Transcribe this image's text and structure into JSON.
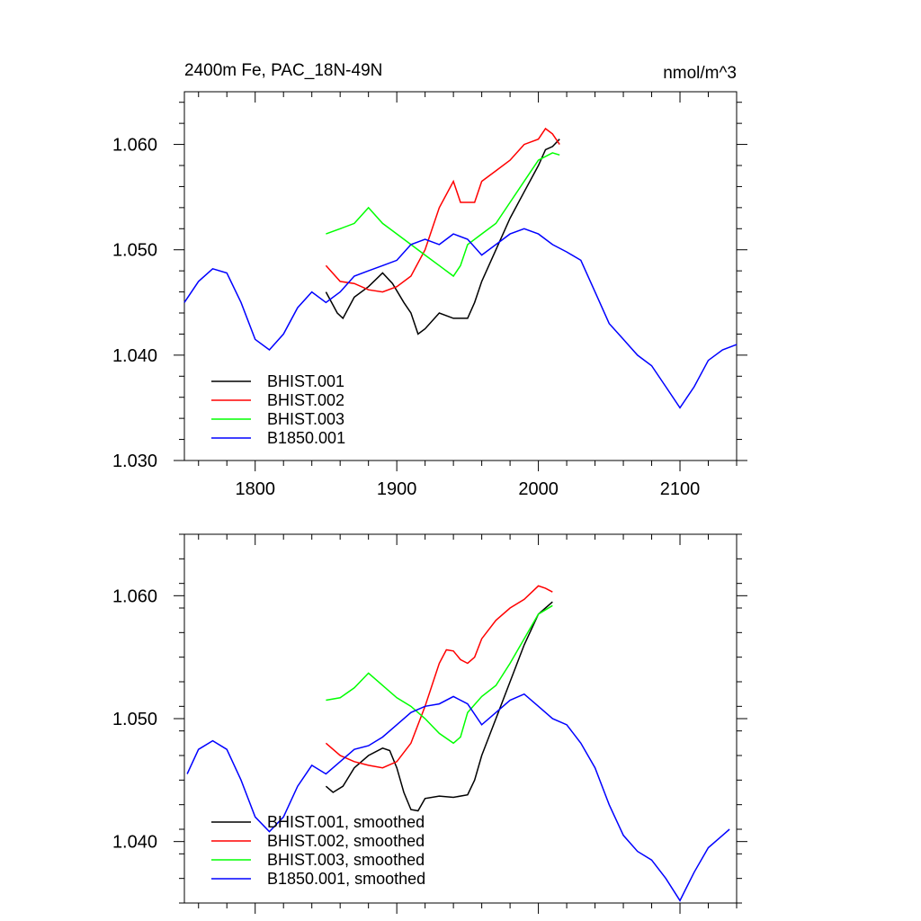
{
  "chart_data": [
    {
      "type": "line",
      "title": "2400m Fe, PAC_18N-49N",
      "units": "nmol/m^3",
      "xlim": [
        1750,
        2140
      ],
      "ylim": [
        1.03,
        1.065
      ],
      "xticks": [
        1800,
        1900,
        2000,
        2100
      ],
      "xtick_labels": [
        "1800",
        "1900",
        "2000",
        "2100"
      ],
      "yticks": [
        1.03,
        1.04,
        1.05,
        1.06
      ],
      "ytick_labels": [
        "1.030",
        "1.040",
        "1.050",
        "1.060"
      ],
      "grid": false,
      "legend_position": "bottom-left",
      "series": [
        {
          "name": "BHIST.001",
          "color": "#000000",
          "x": [
            1850,
            1858,
            1862,
            1870,
            1880,
            1890,
            1897,
            1905,
            1910,
            1915,
            1920,
            1930,
            1940,
            1950,
            1955,
            1960,
            1970,
            1980,
            1990,
            2000,
            2005,
            2010,
            2015
          ],
          "y": [
            1.046,
            1.044,
            1.0435,
            1.0455,
            1.0465,
            1.0478,
            1.0468,
            1.045,
            1.044,
            1.042,
            1.0425,
            1.044,
            1.0435,
            1.0435,
            1.045,
            1.047,
            1.05,
            1.053,
            1.0555,
            1.058,
            1.0595,
            1.0598,
            1.0605
          ]
        },
        {
          "name": "BHIST.002",
          "color": "#ff0000",
          "x": [
            1850,
            1860,
            1870,
            1880,
            1890,
            1900,
            1910,
            1920,
            1930,
            1940,
            1945,
            1955,
            1960,
            1970,
            1980,
            1990,
            2000,
            2005,
            2010,
            2015
          ],
          "y": [
            1.0485,
            1.047,
            1.0468,
            1.0462,
            1.046,
            1.0465,
            1.0475,
            1.05,
            1.054,
            1.0565,
            1.0545,
            1.0545,
            1.0565,
            1.0575,
            1.0585,
            1.06,
            1.0605,
            1.0615,
            1.061,
            1.06
          ]
        },
        {
          "name": "BHIST.003",
          "color": "#00ff00",
          "x": [
            1850,
            1860,
            1870,
            1880,
            1890,
            1900,
            1910,
            1920,
            1930,
            1940,
            1945,
            1950,
            1960,
            1970,
            1980,
            1990,
            2000,
            2010,
            2015
          ],
          "y": [
            1.0515,
            1.052,
            1.0525,
            1.054,
            1.0525,
            1.0515,
            1.0505,
            1.0495,
            1.0485,
            1.0475,
            1.0485,
            1.0505,
            1.0515,
            1.0525,
            1.0545,
            1.0565,
            1.0585,
            1.0592,
            1.059
          ]
        },
        {
          "name": "B1850.001",
          "color": "#0000ff",
          "x": [
            1750,
            1760,
            1770,
            1780,
            1790,
            1800,
            1810,
            1820,
            1830,
            1840,
            1850,
            1860,
            1870,
            1880,
            1890,
            1900,
            1910,
            1920,
            1930,
            1940,
            1950,
            1960,
            1970,
            1980,
            1990,
            2000,
            2010,
            2020,
            2030,
            2040,
            2050,
            2060,
            2070,
            2080,
            2090,
            2100,
            2110,
            2120,
            2130,
            2140
          ],
          "y": [
            1.045,
            1.047,
            1.0482,
            1.0478,
            1.045,
            1.0415,
            1.0405,
            1.042,
            1.0445,
            1.046,
            1.045,
            1.046,
            1.0475,
            1.048,
            1.0485,
            1.049,
            1.0505,
            1.051,
            1.0505,
            1.0515,
            1.051,
            1.0495,
            1.0505,
            1.0515,
            1.052,
            1.0515,
            1.0505,
            1.0498,
            1.049,
            1.046,
            1.043,
            1.0415,
            1.04,
            1.039,
            1.037,
            1.035,
            1.037,
            1.0395,
            1.0405,
            1.041
          ]
        }
      ]
    },
    {
      "type": "line",
      "xlim": [
        1750,
        2140
      ],
      "ylim": [
        1.035,
        1.065
      ],
      "xticks": [
        1800,
        1900,
        2000,
        2100
      ],
      "yticks": [
        1.04,
        1.05,
        1.06
      ],
      "ytick_labels": [
        "1.040",
        "1.050",
        "1.060"
      ],
      "grid": false,
      "legend_position": "bottom-left",
      "series": [
        {
          "name": "BHIST.001, smoothed",
          "color": "#000000",
          "x": [
            1850,
            1855,
            1862,
            1870,
            1880,
            1890,
            1895,
            1900,
            1905,
            1910,
            1915,
            1920,
            1930,
            1940,
            1950,
            1955,
            1960,
            1970,
            1980,
            1990,
            2000,
            2005,
            2010
          ],
          "y": [
            1.0445,
            1.044,
            1.0445,
            1.046,
            1.047,
            1.0476,
            1.0474,
            1.046,
            1.044,
            1.0426,
            1.0425,
            1.0435,
            1.0437,
            1.0436,
            1.0438,
            1.045,
            1.047,
            1.05,
            1.053,
            1.056,
            1.0585,
            1.059,
            1.0595
          ]
        },
        {
          "name": "BHIST.002, smoothed",
          "color": "#ff0000",
          "x": [
            1850,
            1860,
            1870,
            1880,
            1890,
            1900,
            1910,
            1920,
            1930,
            1935,
            1940,
            1945,
            1950,
            1955,
            1960,
            1970,
            1980,
            1990,
            2000,
            2005,
            2010
          ],
          "y": [
            1.048,
            1.047,
            1.0465,
            1.0462,
            1.046,
            1.0465,
            1.048,
            1.051,
            1.0545,
            1.0556,
            1.0555,
            1.0548,
            1.0545,
            1.055,
            1.0565,
            1.058,
            1.059,
            1.0597,
            1.0608,
            1.0606,
            1.0603
          ]
        },
        {
          "name": "BHIST.003, smoothed",
          "color": "#00ff00",
          "x": [
            1850,
            1860,
            1870,
            1880,
            1890,
            1900,
            1910,
            1920,
            1930,
            1940,
            1945,
            1950,
            1960,
            1970,
            1980,
            1990,
            2000,
            2010
          ],
          "y": [
            1.0515,
            1.0517,
            1.0525,
            1.0537,
            1.0527,
            1.0517,
            1.051,
            1.05,
            1.0488,
            1.048,
            1.0485,
            1.0505,
            1.0518,
            1.0527,
            1.0545,
            1.0565,
            1.0585,
            1.0592
          ]
        },
        {
          "name": "B1850.001, smoothed",
          "color": "#0000ff",
          "x": [
            1752,
            1760,
            1770,
            1780,
            1790,
            1800,
            1810,
            1820,
            1830,
            1840,
            1850,
            1860,
            1870,
            1880,
            1890,
            1900,
            1910,
            1920,
            1930,
            1940,
            1950,
            1960,
            1970,
            1980,
            1990,
            2000,
            2010,
            2020,
            2030,
            2040,
            2050,
            2060,
            2070,
            2080,
            2090,
            2100,
            2110,
            2120,
            2130,
            2135
          ],
          "y": [
            1.0455,
            1.0475,
            1.0482,
            1.0475,
            1.045,
            1.042,
            1.0408,
            1.042,
            1.0445,
            1.0462,
            1.0455,
            1.0465,
            1.0475,
            1.0478,
            1.0485,
            1.0495,
            1.0505,
            1.051,
            1.0512,
            1.0518,
            1.0512,
            1.0495,
            1.0505,
            1.0515,
            1.052,
            1.051,
            1.05,
            1.0495,
            1.048,
            1.046,
            1.043,
            1.0405,
            1.0392,
            1.0385,
            1.037,
            1.0352,
            1.0375,
            1.0395,
            1.0405,
            1.041
          ]
        }
      ]
    }
  ]
}
